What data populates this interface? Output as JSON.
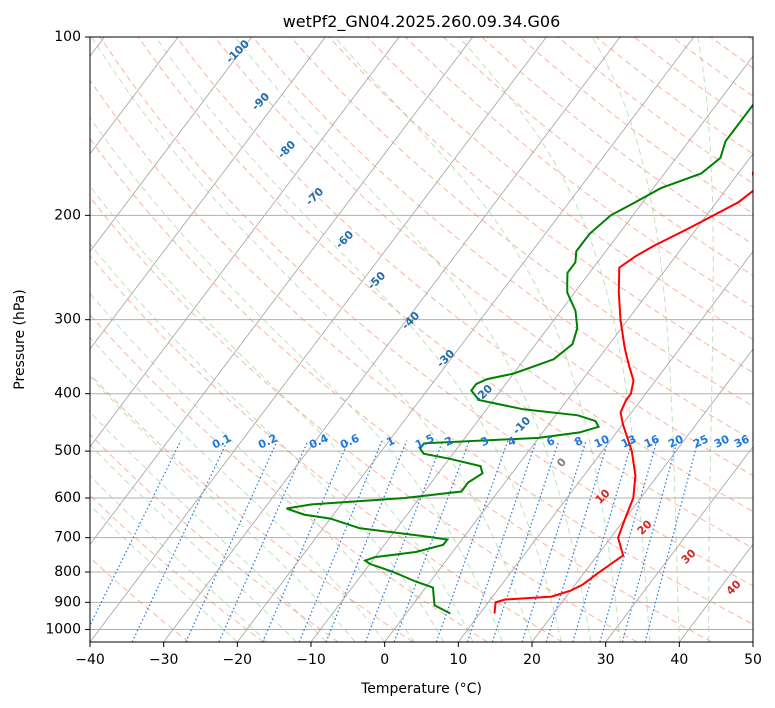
{
  "chart_data": {
    "type": "line",
    "title": "wetPf2_GN04.2025.260.09.34.G06",
    "xlabel": "Temperature (°C)",
    "ylabel": "Pressure (hPa)",
    "xlim": [
      -40,
      50
    ],
    "ylim": [
      1050,
      100
    ],
    "y_scale": "log",
    "x_ticks": [
      -40,
      -30,
      -20,
      -10,
      0,
      10,
      20,
      30,
      40,
      50
    ],
    "x_tick_labels": [
      "−40",
      "−30",
      "−20",
      "−10",
      "0",
      "10",
      "20",
      "30",
      "40",
      "50"
    ],
    "y_ticks": [
      1000,
      900,
      800,
      700,
      600,
      500,
      400,
      300,
      200,
      100
    ],
    "y_tick_labels": [
      "1000",
      "900",
      "800",
      "700",
      "600",
      "500",
      "400",
      "300",
      "200",
      "100"
    ],
    "grid": true,
    "colors": {
      "temperature": "#ff0000",
      "dewpoint": "#008000",
      "isotherm": "#aaaaaa",
      "dry_adiabat": "#fa8064",
      "moist_adiabat": "#8cc88c",
      "mixing_ratio": "#1e78dc",
      "theta_e_label": "#1f6eaa",
      "theta_label": "#d22828"
    },
    "series": [
      {
        "key": "temperature",
        "pressure": [
          940,
          900,
          890,
          880,
          860,
          840,
          800,
          750,
          700,
          650,
          600,
          550,
          500,
          450,
          430,
          410,
          400,
          380,
          360,
          340,
          330,
          300,
          270,
          245,
          235,
          225,
          210,
          190,
          180,
          170,
          160,
          150,
          140,
          130,
          115,
          100
        ],
        "values": [
          12,
          11,
          12,
          18,
          20,
          21,
          22,
          23.5,
          21,
          20,
          19,
          17,
          14,
          10,
          8.5,
          8,
          8,
          7,
          5,
          3,
          2,
          -1,
          -4,
          -6.5,
          -5.5,
          -4,
          -1,
          3,
          4,
          2,
          1,
          1,
          1,
          2,
          8,
          12
        ]
      },
      {
        "key": "dewpoint",
        "pressure": [
          940,
          910,
          880,
          850,
          830,
          800,
          775,
          765,
          755,
          740,
          720,
          705,
          695,
          675,
          650,
          640,
          625,
          615,
          600,
          585,
          565,
          545,
          530,
          515,
          505,
          495,
          485,
          475,
          465,
          455,
          445,
          435,
          425,
          410,
          395,
          385,
          378,
          370,
          350,
          330,
          310,
          290,
          270,
          260,
          250,
          240,
          230,
          215,
          200,
          195,
          190,
          180,
          170,
          160,
          150,
          135,
          120,
          110,
          100
        ],
        "values": [
          6,
          3,
          2,
          1,
          -2,
          -6,
          -10,
          -11,
          -10,
          -5,
          -2,
          -2,
          -6,
          -15,
          -20,
          -24,
          -27,
          -24,
          -12,
          -5,
          -5,
          -4,
          -5,
          -10,
          -14,
          -15,
          -15,
          0,
          5,
          7,
          6,
          3,
          -5,
          -12,
          -14,
          -14,
          -13,
          -10,
          -6,
          -5,
          -6,
          -8,
          -11,
          -12,
          -13,
          -13,
          -14,
          -14,
          -13,
          -12,
          -11,
          -9,
          -5,
          -4,
          -5,
          -5,
          -5,
          -5,
          -2
        ]
      }
    ],
    "moist_labels": [
      "-100",
      "-90",
      "-80",
      "-70",
      "-60",
      "-50",
      "-40",
      "-30",
      "-20",
      "-10",
      "0"
    ],
    "mixing_labels": [
      "0.1",
      "0.2",
      "0.4",
      "0.6",
      "1",
      "1.5",
      "2",
      "3",
      "4",
      "6",
      "8",
      "10",
      "13",
      "16",
      "20",
      "25",
      "30",
      "36"
    ],
    "theta_labels": [
      "10",
      "20",
      "30",
      "40"
    ]
  }
}
